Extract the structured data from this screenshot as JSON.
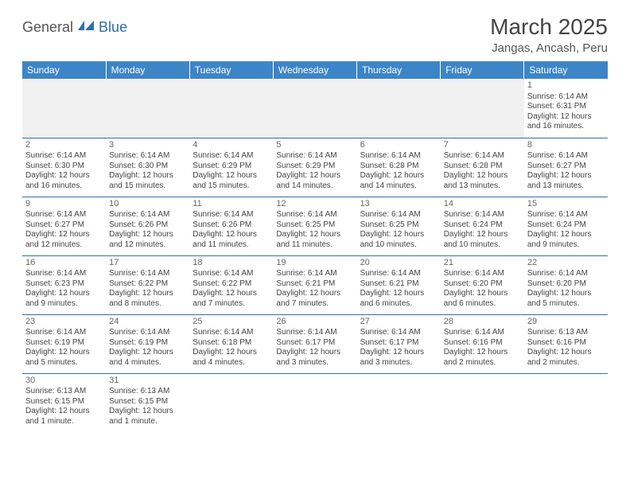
{
  "logo": {
    "part1": "General",
    "part2": "Blue",
    "icon_color": "#2f6fa8"
  },
  "title": "March 2025",
  "location": "Jangas, Ancash, Peru",
  "colors": {
    "header_bg": "#3d85c6",
    "header_text": "#ffffff",
    "border": "#2f6fa8",
    "blank_bg": "#f1f1f1"
  },
  "weekdays": [
    "Sunday",
    "Monday",
    "Tuesday",
    "Wednesday",
    "Thursday",
    "Friday",
    "Saturday"
  ],
  "weeks": [
    [
      null,
      null,
      null,
      null,
      null,
      null,
      {
        "n": "1",
        "sr": "Sunrise: 6:14 AM",
        "ss": "Sunset: 6:31 PM",
        "dl": "Daylight: 12 hours and 16 minutes."
      }
    ],
    [
      {
        "n": "2",
        "sr": "Sunrise: 6:14 AM",
        "ss": "Sunset: 6:30 PM",
        "dl": "Daylight: 12 hours and 16 minutes."
      },
      {
        "n": "3",
        "sr": "Sunrise: 6:14 AM",
        "ss": "Sunset: 6:30 PM",
        "dl": "Daylight: 12 hours and 15 minutes."
      },
      {
        "n": "4",
        "sr": "Sunrise: 6:14 AM",
        "ss": "Sunset: 6:29 PM",
        "dl": "Daylight: 12 hours and 15 minutes."
      },
      {
        "n": "5",
        "sr": "Sunrise: 6:14 AM",
        "ss": "Sunset: 6:29 PM",
        "dl": "Daylight: 12 hours and 14 minutes."
      },
      {
        "n": "6",
        "sr": "Sunrise: 6:14 AM",
        "ss": "Sunset: 6:28 PM",
        "dl": "Daylight: 12 hours and 14 minutes."
      },
      {
        "n": "7",
        "sr": "Sunrise: 6:14 AM",
        "ss": "Sunset: 6:28 PM",
        "dl": "Daylight: 12 hours and 13 minutes."
      },
      {
        "n": "8",
        "sr": "Sunrise: 6:14 AM",
        "ss": "Sunset: 6:27 PM",
        "dl": "Daylight: 12 hours and 13 minutes."
      }
    ],
    [
      {
        "n": "9",
        "sr": "Sunrise: 6:14 AM",
        "ss": "Sunset: 6:27 PM",
        "dl": "Daylight: 12 hours and 12 minutes."
      },
      {
        "n": "10",
        "sr": "Sunrise: 6:14 AM",
        "ss": "Sunset: 6:26 PM",
        "dl": "Daylight: 12 hours and 12 minutes."
      },
      {
        "n": "11",
        "sr": "Sunrise: 6:14 AM",
        "ss": "Sunset: 6:26 PM",
        "dl": "Daylight: 12 hours and 11 minutes."
      },
      {
        "n": "12",
        "sr": "Sunrise: 6:14 AM",
        "ss": "Sunset: 6:25 PM",
        "dl": "Daylight: 12 hours and 11 minutes."
      },
      {
        "n": "13",
        "sr": "Sunrise: 6:14 AM",
        "ss": "Sunset: 6:25 PM",
        "dl": "Daylight: 12 hours and 10 minutes."
      },
      {
        "n": "14",
        "sr": "Sunrise: 6:14 AM",
        "ss": "Sunset: 6:24 PM",
        "dl": "Daylight: 12 hours and 10 minutes."
      },
      {
        "n": "15",
        "sr": "Sunrise: 6:14 AM",
        "ss": "Sunset: 6:24 PM",
        "dl": "Daylight: 12 hours and 9 minutes."
      }
    ],
    [
      {
        "n": "16",
        "sr": "Sunrise: 6:14 AM",
        "ss": "Sunset: 6:23 PM",
        "dl": "Daylight: 12 hours and 9 minutes."
      },
      {
        "n": "17",
        "sr": "Sunrise: 6:14 AM",
        "ss": "Sunset: 6:22 PM",
        "dl": "Daylight: 12 hours and 8 minutes."
      },
      {
        "n": "18",
        "sr": "Sunrise: 6:14 AM",
        "ss": "Sunset: 6:22 PM",
        "dl": "Daylight: 12 hours and 7 minutes."
      },
      {
        "n": "19",
        "sr": "Sunrise: 6:14 AM",
        "ss": "Sunset: 6:21 PM",
        "dl": "Daylight: 12 hours and 7 minutes."
      },
      {
        "n": "20",
        "sr": "Sunrise: 6:14 AM",
        "ss": "Sunset: 6:21 PM",
        "dl": "Daylight: 12 hours and 6 minutes."
      },
      {
        "n": "21",
        "sr": "Sunrise: 6:14 AM",
        "ss": "Sunset: 6:20 PM",
        "dl": "Daylight: 12 hours and 6 minutes."
      },
      {
        "n": "22",
        "sr": "Sunrise: 6:14 AM",
        "ss": "Sunset: 6:20 PM",
        "dl": "Daylight: 12 hours and 5 minutes."
      }
    ],
    [
      {
        "n": "23",
        "sr": "Sunrise: 6:14 AM",
        "ss": "Sunset: 6:19 PM",
        "dl": "Daylight: 12 hours and 5 minutes."
      },
      {
        "n": "24",
        "sr": "Sunrise: 6:14 AM",
        "ss": "Sunset: 6:19 PM",
        "dl": "Daylight: 12 hours and 4 minutes."
      },
      {
        "n": "25",
        "sr": "Sunrise: 6:14 AM",
        "ss": "Sunset: 6:18 PM",
        "dl": "Daylight: 12 hours and 4 minutes."
      },
      {
        "n": "26",
        "sr": "Sunrise: 6:14 AM",
        "ss": "Sunset: 6:17 PM",
        "dl": "Daylight: 12 hours and 3 minutes."
      },
      {
        "n": "27",
        "sr": "Sunrise: 6:14 AM",
        "ss": "Sunset: 6:17 PM",
        "dl": "Daylight: 12 hours and 3 minutes."
      },
      {
        "n": "28",
        "sr": "Sunrise: 6:14 AM",
        "ss": "Sunset: 6:16 PM",
        "dl": "Daylight: 12 hours and 2 minutes."
      },
      {
        "n": "29",
        "sr": "Sunrise: 6:13 AM",
        "ss": "Sunset: 6:16 PM",
        "dl": "Daylight: 12 hours and 2 minutes."
      }
    ],
    [
      {
        "n": "30",
        "sr": "Sunrise: 6:13 AM",
        "ss": "Sunset: 6:15 PM",
        "dl": "Daylight: 12 hours and 1 minute."
      },
      {
        "n": "31",
        "sr": "Sunrise: 6:13 AM",
        "ss": "Sunset: 6:15 PM",
        "dl": "Daylight: 12 hours and 1 minute."
      },
      null,
      null,
      null,
      null,
      null
    ]
  ]
}
